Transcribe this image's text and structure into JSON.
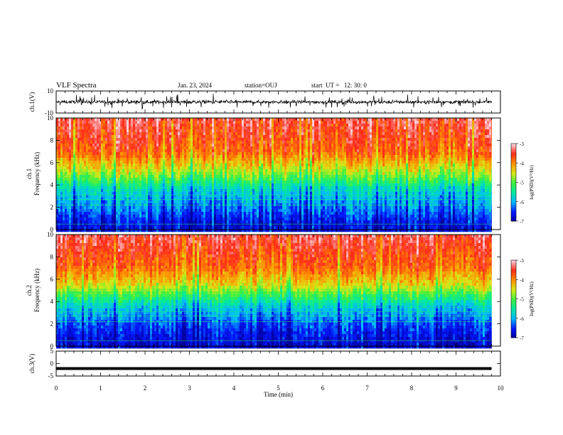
{
  "header": {
    "title": "VLF Spectra",
    "date": "Jan. 23, 2024",
    "station": "station=OUJ",
    "start": "start  UT =   12: 30: 0"
  },
  "chart_data": [
    {
      "type": "line",
      "panel": "ch1-waveform",
      "ylabel": "ch.1(V)",
      "ylim": [
        -10,
        10
      ],
      "ytick_labels": [
        "10",
        "-10"
      ],
      "xlim": [
        0,
        10
      ],
      "series": [
        {
          "values_note_mean": 0,
          "envelope": [
            -5,
            5
          ]
        }
      ]
    },
    {
      "type": "heatmap",
      "panel": "ch1-spectrogram",
      "ylabel": "ch.1\nFrequency  (kHz)",
      "ylim": [
        0,
        10
      ],
      "ytick_labels": [
        "0",
        "2",
        "4",
        "6",
        "8",
        "10"
      ],
      "xlim": [
        0,
        10
      ],
      "data_end_min": 9.8,
      "colorbar": {
        "label": "log(PSD)(V²/Hz)",
        "range": [
          -7,
          -3
        ],
        "tick_labels": [
          "-3",
          "-4",
          "-5",
          "-6",
          "-7"
        ]
      },
      "profile": [
        {
          "freq_khz": 0.5,
          "log_psd": -6.6
        },
        {
          "freq_khz": 2,
          "log_psd": -6.1
        },
        {
          "freq_khz": 3.5,
          "log_psd": -5.7
        },
        {
          "freq_khz": 4.5,
          "log_psd": -5.0
        },
        {
          "freq_khz": 5.5,
          "log_psd": -4.4
        },
        {
          "freq_khz": 7,
          "log_psd": -3.7
        },
        {
          "freq_khz": 10,
          "log_psd": -3.3
        }
      ]
    },
    {
      "type": "heatmap",
      "panel": "ch2-spectrogram",
      "ylabel": "ch.2\nFrequency  (kHz)",
      "ylim": [
        0,
        10
      ],
      "ytick_labels": [
        "0",
        "2",
        "4",
        "6",
        "8",
        "10"
      ],
      "xlim": [
        0,
        10
      ],
      "data_end_min": 9.8,
      "colorbar": {
        "label": "log(PSD)(V²/Hz)",
        "range": [
          -7,
          -3
        ],
        "tick_labels": [
          "-3",
          "-4",
          "-5",
          "-6",
          "-7"
        ]
      },
      "profile": [
        {
          "freq_khz": 0.5,
          "log_psd": -6.7
        },
        {
          "freq_khz": 2,
          "log_psd": -6.3
        },
        {
          "freq_khz": 3.5,
          "log_psd": -5.8
        },
        {
          "freq_khz": 4.5,
          "log_psd": -5.1
        },
        {
          "freq_khz": 5.5,
          "log_psd": -4.4
        },
        {
          "freq_khz": 7,
          "log_psd": -3.8
        },
        {
          "freq_khz": 10,
          "log_psd": -3.3
        }
      ]
    },
    {
      "type": "line",
      "panel": "ch3-waveform",
      "ylabel": "ch.3(V)",
      "ylim": [
        -5,
        5
      ],
      "ytick_labels": [
        "5",
        "0",
        "-5"
      ],
      "xlim": [
        0,
        10
      ],
      "series": [
        {
          "constant_value": -2
        }
      ]
    }
  ],
  "xaxis": {
    "label": "Time  (min)",
    "tick_labels": [
      "0",
      "1",
      "2",
      "3",
      "4",
      "5",
      "6",
      "7",
      "8",
      "9",
      "10"
    ]
  },
  "colormap": [
    "#0000a0",
    "#0018ff",
    "#00b8ff",
    "#00e8a0",
    "#40f040",
    "#d8e818",
    "#ff9000",
    "#ff2a1a",
    "#ffd0d8"
  ]
}
